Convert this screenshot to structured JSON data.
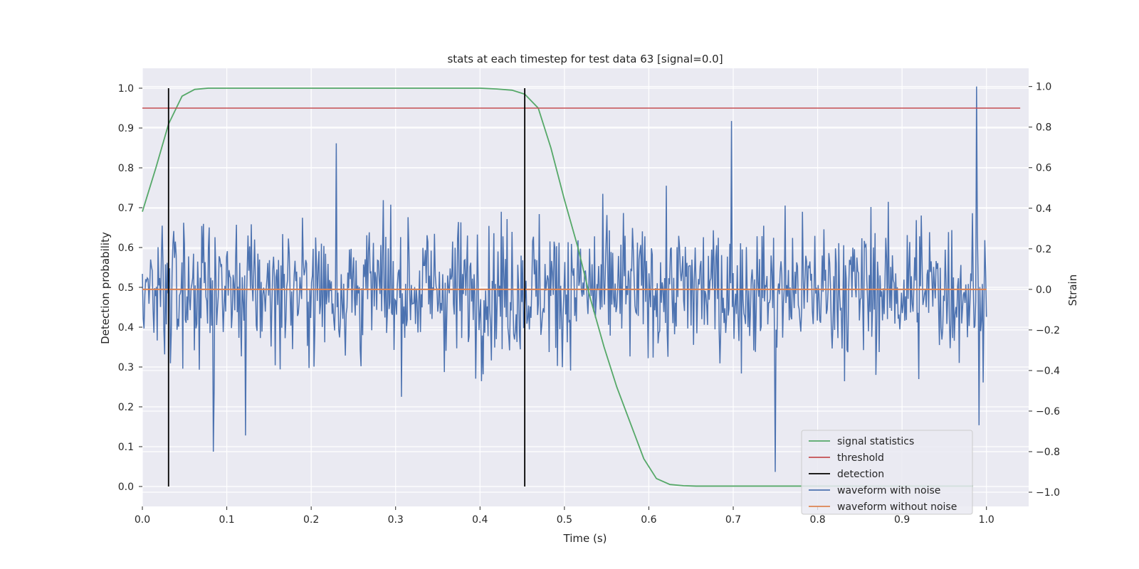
{
  "chart_data": {
    "type": "line",
    "title": "stats at each timestep for test data 63 [signal=0.0]",
    "xlabel": "Time (s)",
    "ylabel_left": "Detection probability",
    "ylabel_right": "Strain",
    "xlim": [
      0.0,
      1.05
    ],
    "ylim_left": [
      -0.05,
      1.05
    ],
    "ylim_right": [
      -1.07,
      1.09
    ],
    "x_ticks": [
      "0.0",
      "0.1",
      "0.2",
      "0.3",
      "0.4",
      "0.5",
      "0.6",
      "0.7",
      "0.8",
      "0.9",
      "1.0"
    ],
    "y_left_ticks": [
      "0.0",
      "0.1",
      "0.2",
      "0.3",
      "0.4",
      "0.5",
      "0.6",
      "0.7",
      "0.8",
      "0.9",
      "1.0"
    ],
    "y_right_ticks": [
      "−1.0",
      "−0.8",
      "−0.6",
      "−0.4",
      "−0.2",
      "0.0",
      "0.2",
      "0.4",
      "0.6",
      "0.8",
      "1.0"
    ],
    "grid": true,
    "legend_position": "bottom-right",
    "colors": {
      "signal_statistics": "#55a868",
      "threshold": "#c44e52",
      "detection": "#000000",
      "waveform_with_noise": "#4c72b0",
      "waveform_without_noise": "#dd8452",
      "plot_background": "#eaeaf2",
      "grid": "#ffffff"
    },
    "series": [
      {
        "name": "signal statistics",
        "axis": "left",
        "x": [
          0.0,
          0.016,
          0.031,
          0.047,
          0.062,
          0.078,
          0.094,
          0.2,
          0.3,
          0.4,
          0.42,
          0.438,
          0.453,
          0.469,
          0.484,
          0.5,
          0.516,
          0.531,
          0.547,
          0.562,
          0.578,
          0.594,
          0.609,
          0.625,
          0.641,
          0.656,
          0.7,
          0.8,
          0.9,
          0.984
        ],
        "y": [
          0.69,
          0.8,
          0.91,
          0.98,
          0.997,
          1.0,
          1.0,
          1.0,
          1.0,
          1.0,
          0.998,
          0.995,
          0.985,
          0.95,
          0.85,
          0.72,
          0.6,
          0.47,
          0.35,
          0.25,
          0.16,
          0.07,
          0.02,
          0.005,
          0.002,
          0.001,
          0.001,
          0.001,
          0.001,
          0.001
        ]
      },
      {
        "name": "threshold",
        "axis": "left",
        "x": [
          0.0,
          1.04
        ],
        "y": [
          0.95,
          0.95
        ]
      },
      {
        "name": "detection",
        "axis": "left",
        "x_lines": [
          0.031,
          0.453
        ],
        "y_range": [
          0.0,
          1.0
        ]
      },
      {
        "name": "waveform with noise",
        "axis": "right",
        "x_range": [
          0.0,
          1.0
        ],
        "n_points": 1024,
        "y_highlights": [
          {
            "x": 0.084,
            "y": -0.8
          },
          {
            "x": 0.122,
            "y": -0.72
          },
          {
            "x": 0.23,
            "y": 0.72
          },
          {
            "x": 0.698,
            "y": 0.83
          },
          {
            "x": 0.75,
            "y": -0.9
          },
          {
            "x": 0.988,
            "y": 1.0
          },
          {
            "x": 0.991,
            "y": -0.67
          }
        ]
      },
      {
        "name": "waveform without noise",
        "axis": "right",
        "x": [
          0.0,
          1.0
        ],
        "y": [
          0.0,
          0.0
        ]
      }
    ]
  }
}
